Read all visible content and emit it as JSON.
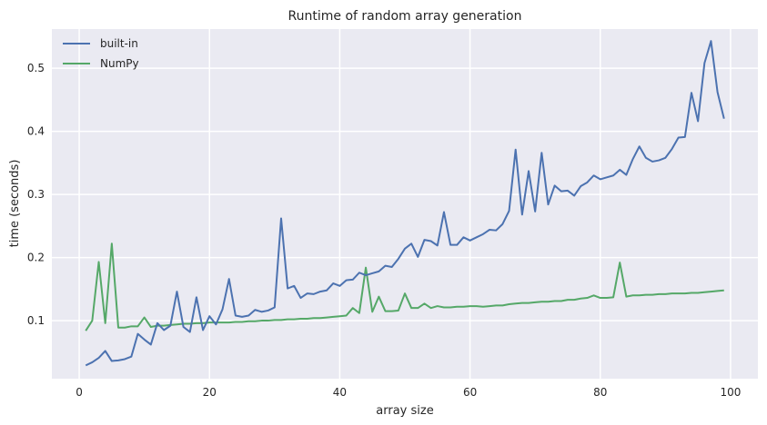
{
  "chart_data": {
    "type": "line",
    "title": "Runtime of random array generation",
    "xlabel": "array size",
    "ylabel": "time (seconds)",
    "xlim": [
      -4.2,
      104.2
    ],
    "ylim": [
      0.008,
      0.562
    ],
    "xticks": [
      0,
      20,
      40,
      60,
      80,
      100
    ],
    "yticks": [
      0.1,
      0.2,
      0.3,
      0.4,
      0.5
    ],
    "grid": true,
    "legend_position": "top-left",
    "x": [
      1,
      2,
      3,
      4,
      5,
      6,
      7,
      8,
      9,
      10,
      11,
      12,
      13,
      14,
      15,
      16,
      17,
      18,
      19,
      20,
      21,
      22,
      23,
      24,
      25,
      26,
      27,
      28,
      29,
      30,
      31,
      32,
      33,
      34,
      35,
      36,
      37,
      38,
      39,
      40,
      41,
      42,
      43,
      44,
      45,
      46,
      47,
      48,
      49,
      50,
      51,
      52,
      53,
      54,
      55,
      56,
      57,
      58,
      59,
      60,
      61,
      62,
      63,
      64,
      65,
      66,
      67,
      68,
      69,
      70,
      71,
      72,
      73,
      74,
      75,
      76,
      77,
      78,
      79,
      80,
      81,
      82,
      83,
      84,
      85,
      86,
      87,
      88,
      89,
      90,
      91,
      92,
      93,
      94,
      95,
      96,
      97,
      98,
      99
    ],
    "series": [
      {
        "name": "built-in",
        "color": "#4c72b0",
        "values": [
          0.029,
          0.034,
          0.041,
          0.052,
          0.036,
          0.037,
          0.039,
          0.043,
          0.079,
          0.07,
          0.062,
          0.096,
          0.085,
          0.092,
          0.146,
          0.09,
          0.082,
          0.137,
          0.085,
          0.107,
          0.094,
          0.118,
          0.166,
          0.108,
          0.106,
          0.108,
          0.117,
          0.114,
          0.116,
          0.121,
          0.262,
          0.151,
          0.155,
          0.136,
          0.143,
          0.142,
          0.146,
          0.148,
          0.159,
          0.155,
          0.164,
          0.165,
          0.176,
          0.172,
          0.175,
          0.178,
          0.187,
          0.185,
          0.198,
          0.214,
          0.222,
          0.201,
          0.228,
          0.226,
          0.219,
          0.272,
          0.22,
          0.22,
          0.232,
          0.227,
          0.232,
          0.237,
          0.244,
          0.243,
          0.253,
          0.274,
          0.371,
          0.268,
          0.337,
          0.273,
          0.366,
          0.284,
          0.314,
          0.305,
          0.306,
          0.298,
          0.313,
          0.319,
          0.33,
          0.324,
          0.327,
          0.33,
          0.339,
          0.331,
          0.356,
          0.376,
          0.358,
          0.352,
          0.354,
          0.358,
          0.372,
          0.39,
          0.391,
          0.461,
          0.416,
          0.508,
          0.543,
          0.462,
          0.42
        ]
      },
      {
        "name": "NumPy",
        "color": "#55a868",
        "values": [
          0.084,
          0.1,
          0.193,
          0.096,
          0.222,
          0.089,
          0.089,
          0.091,
          0.091,
          0.105,
          0.09,
          0.092,
          0.092,
          0.093,
          0.094,
          0.095,
          0.095,
          0.096,
          0.096,
          0.097,
          0.097,
          0.097,
          0.097,
          0.098,
          0.098,
          0.099,
          0.099,
          0.1,
          0.1,
          0.101,
          0.101,
          0.102,
          0.102,
          0.103,
          0.103,
          0.104,
          0.104,
          0.105,
          0.106,
          0.107,
          0.108,
          0.12,
          0.112,
          0.184,
          0.114,
          0.138,
          0.115,
          0.115,
          0.116,
          0.143,
          0.12,
          0.12,
          0.127,
          0.12,
          0.123,
          0.121,
          0.121,
          0.122,
          0.122,
          0.123,
          0.123,
          0.122,
          0.123,
          0.124,
          0.124,
          0.126,
          0.127,
          0.128,
          0.128,
          0.129,
          0.13,
          0.13,
          0.131,
          0.131,
          0.133,
          0.133,
          0.135,
          0.136,
          0.14,
          0.136,
          0.136,
          0.137,
          0.192,
          0.138,
          0.14,
          0.14,
          0.141,
          0.141,
          0.142,
          0.142,
          0.143,
          0.143,
          0.143,
          0.144,
          0.144,
          0.145,
          0.146,
          0.147,
          0.148
        ]
      }
    ]
  }
}
